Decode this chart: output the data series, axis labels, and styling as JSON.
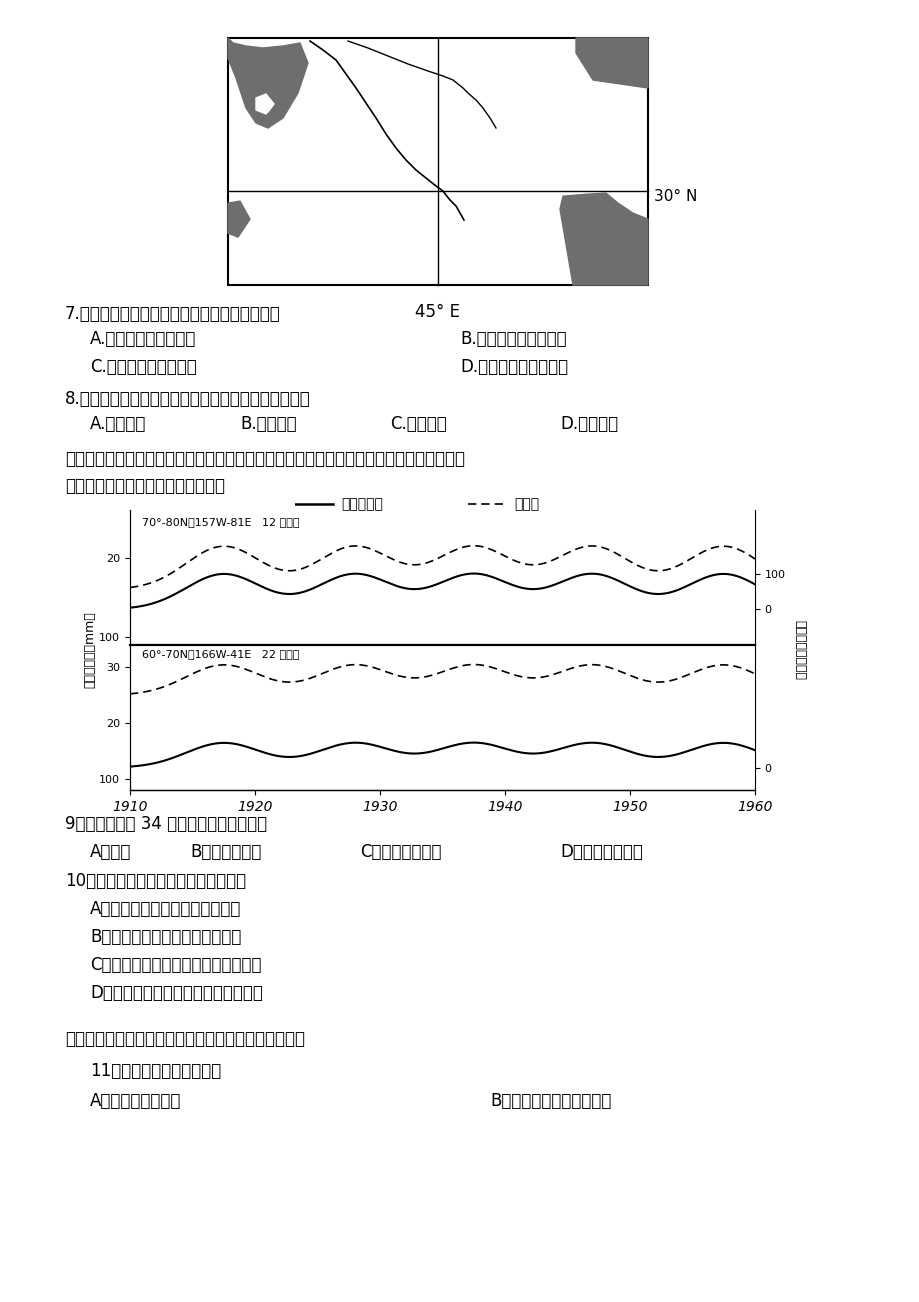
{
  "background_color": "#ffffff",
  "label_30N": "30° N",
  "label_45E": "45° E",
  "q7_text": "7.这里的城市多沿河而居，街道上可见的景观有",
  "q7_A": "A.圆形穹顶的东正教堂",
  "q7_B": "B.艳丽轻柔的纱丽服饰",
  "q7_C": "C.圆顶尖塔的大清真寺",
  "q7_D": "D.热情奔放的土风歌舞",
  "q8_text": "8.对该地区的经济发展具有十分重要作用的自然资源是",
  "q8_A": "A.油气资源",
  "q8_B": "B.水能资源",
  "q8_C": "C.森林资源",
  "q8_D": "D.水产资源",
  "s5_text1": "（五）太阳黑子活动的变化会对地球的气候产生明显影响。下图显示北半球部分高绬度地区",
  "s5_text2": "太阳黑子活动与年均降水量的关系。",
  "leg_solid": "太阳黑子数",
  "leg_dashed": "降水量",
  "chart_label1": "70°-80N，157W-81E   12 个测站",
  "chart_label2": "60°-70N，166W-41E   22 个测站",
  "ylabel_left": "年均降水量（mm）",
  "ylabel_right": "黑子相对数（个）",
  "xticks": [
    "1910",
    "1920",
    "1930",
    "1940",
    "1950",
    "1960"
  ],
  "q9_text": "9．图中所示的 34 个测站分布范围主要在",
  "q9_A": "A．亚洲",
  "q9_B": "B．亚洲和欧洲",
  "q9_C": "C．亚洲和北美洲",
  "q9_D": "D．欧洲和北美洲",
  "q10_text": "10．观测显示，所测地区年平均降水量",
  "q10_A": "A．随太阳黑子活动的增强而增大",
  "q10_B": "B．随太阳黑子活动的增强而减小",
  "q10_C": "C．变化周期与太阳黑子活动周期吴合",
  "q10_D": "D．变化周期与太阳黑子活动周期无关",
  "s6_text": "（六）板块运动造就了地球表面高低起伏的基本形态。",
  "q11_text": "11．洋脊的形成主要是由于",
  "q11_A": "A．地震使海底抬升",
  "q11_B": "B．地震导致海底中间凹陷"
}
